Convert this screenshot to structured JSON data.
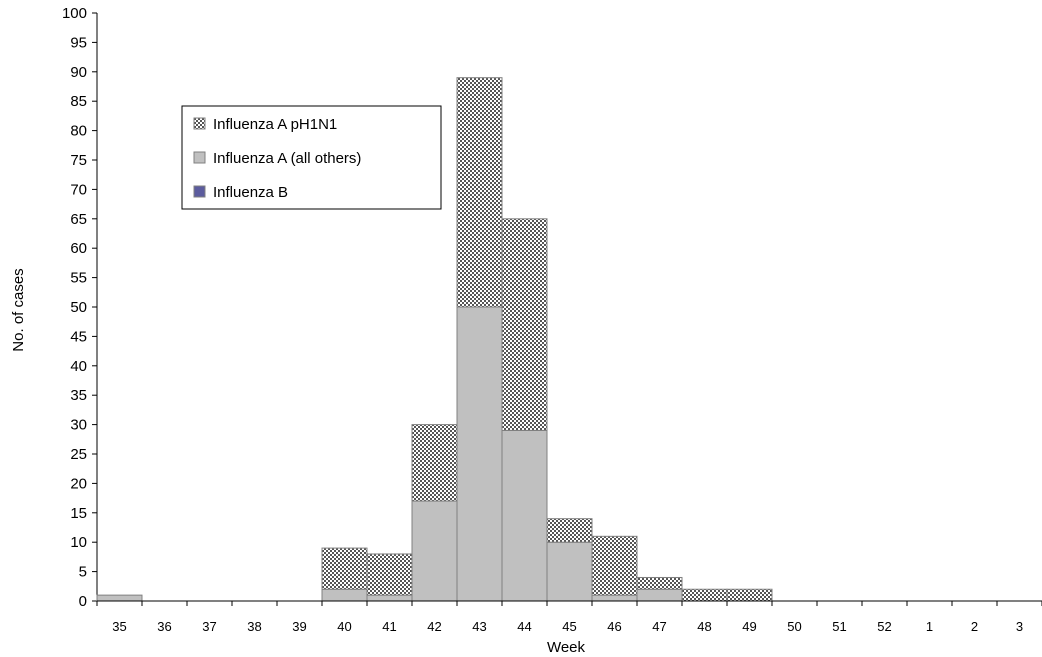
{
  "chart_data": {
    "type": "bar",
    "stacked": true,
    "xlabel": "Week",
    "ylabel": "No. of cases",
    "ylim": [
      0,
      100
    ],
    "ytick_step": 5,
    "categories": [
      "35",
      "36",
      "37",
      "38",
      "39",
      "40",
      "41",
      "42",
      "43",
      "44",
      "45",
      "46",
      "47",
      "48",
      "49",
      "50",
      "51",
      "52",
      "1",
      "2",
      "3"
    ],
    "series": [
      {
        "name": "Influenza A pH1N1",
        "color": "#7a7a7a",
        "pattern": "crosshatch",
        "values": [
          0,
          0,
          0,
          0,
          0,
          7,
          7,
          13,
          39,
          36,
          4,
          10,
          2,
          2,
          2,
          0,
          0,
          0,
          0,
          0,
          0
        ]
      },
      {
        "name": "Influenza A (all others)",
        "color": "#c0c0c0",
        "values": [
          1,
          0,
          0,
          0,
          0,
          2,
          1,
          17,
          50,
          29,
          10,
          1,
          2,
          0,
          0,
          0,
          0,
          0,
          0,
          0,
          0
        ]
      },
      {
        "name": "Influenza B",
        "color": "#5c5c9e",
        "values": [
          0,
          0,
          0,
          0,
          0,
          0,
          0,
          0,
          0,
          0,
          0,
          0,
          0,
          0,
          0,
          0,
          0,
          0,
          0,
          0,
          0
        ]
      }
    ],
    "legend_position": "upper-left",
    "grid": false
  }
}
